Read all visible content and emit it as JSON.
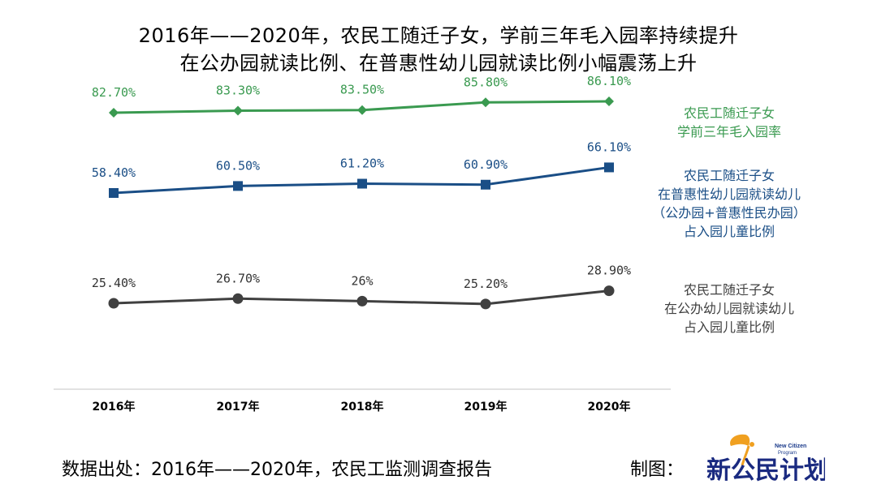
{
  "title": {
    "line1": "2016年——2020年，农民工随迁子女，学前三年毛入园率持续提升",
    "line2": "在公办园就读比例、在普惠性幼儿园就读比例小幅震荡上升"
  },
  "chart_data": {
    "type": "line",
    "categories": [
      "2016年",
      "2017年",
      "2018年",
      "2019年",
      "2020年"
    ],
    "series": [
      {
        "name_lines": [
          "农民工随迁子女",
          "学前三年毛入园率"
        ],
        "values": [
          82.7,
          83.3,
          83.5,
          85.8,
          86.1
        ],
        "labels": [
          "82.70%",
          "83.30%",
          "83.50%",
          "85.80%",
          "86.10%"
        ],
        "color": "#3a9a50",
        "marker": "diamond"
      },
      {
        "name_lines": [
          "农民工随迁子女",
          "在普惠性幼儿园就读幼儿",
          "（公办园+普惠性民办园）",
          "占入园儿童比例"
        ],
        "values": [
          58.4,
          60.5,
          61.2,
          60.9,
          66.1
        ],
        "labels": [
          "58.40%",
          "60.50%",
          "61.20%",
          "60.90%",
          "66.10%"
        ],
        "color": "#1a4e86",
        "marker": "square"
      },
      {
        "name_lines": [
          "农民工随迁子女",
          "在公办幼儿园就读幼儿",
          "占入园儿童比例"
        ],
        "values": [
          25.4,
          26.7,
          26.0,
          25.2,
          28.9
        ],
        "labels": [
          "25.40%",
          "26.70%",
          "26%",
          "25.20%",
          "28.90%"
        ],
        "color": "#404040",
        "marker": "circle"
      }
    ]
  },
  "footer": {
    "source": "数据出处：2016年——2020年，农民工监测调查报告",
    "credit_label": "制图：",
    "logo_text": "新公民计划",
    "logo_en_1": "New Citizen",
    "logo_en_2": "Program"
  }
}
